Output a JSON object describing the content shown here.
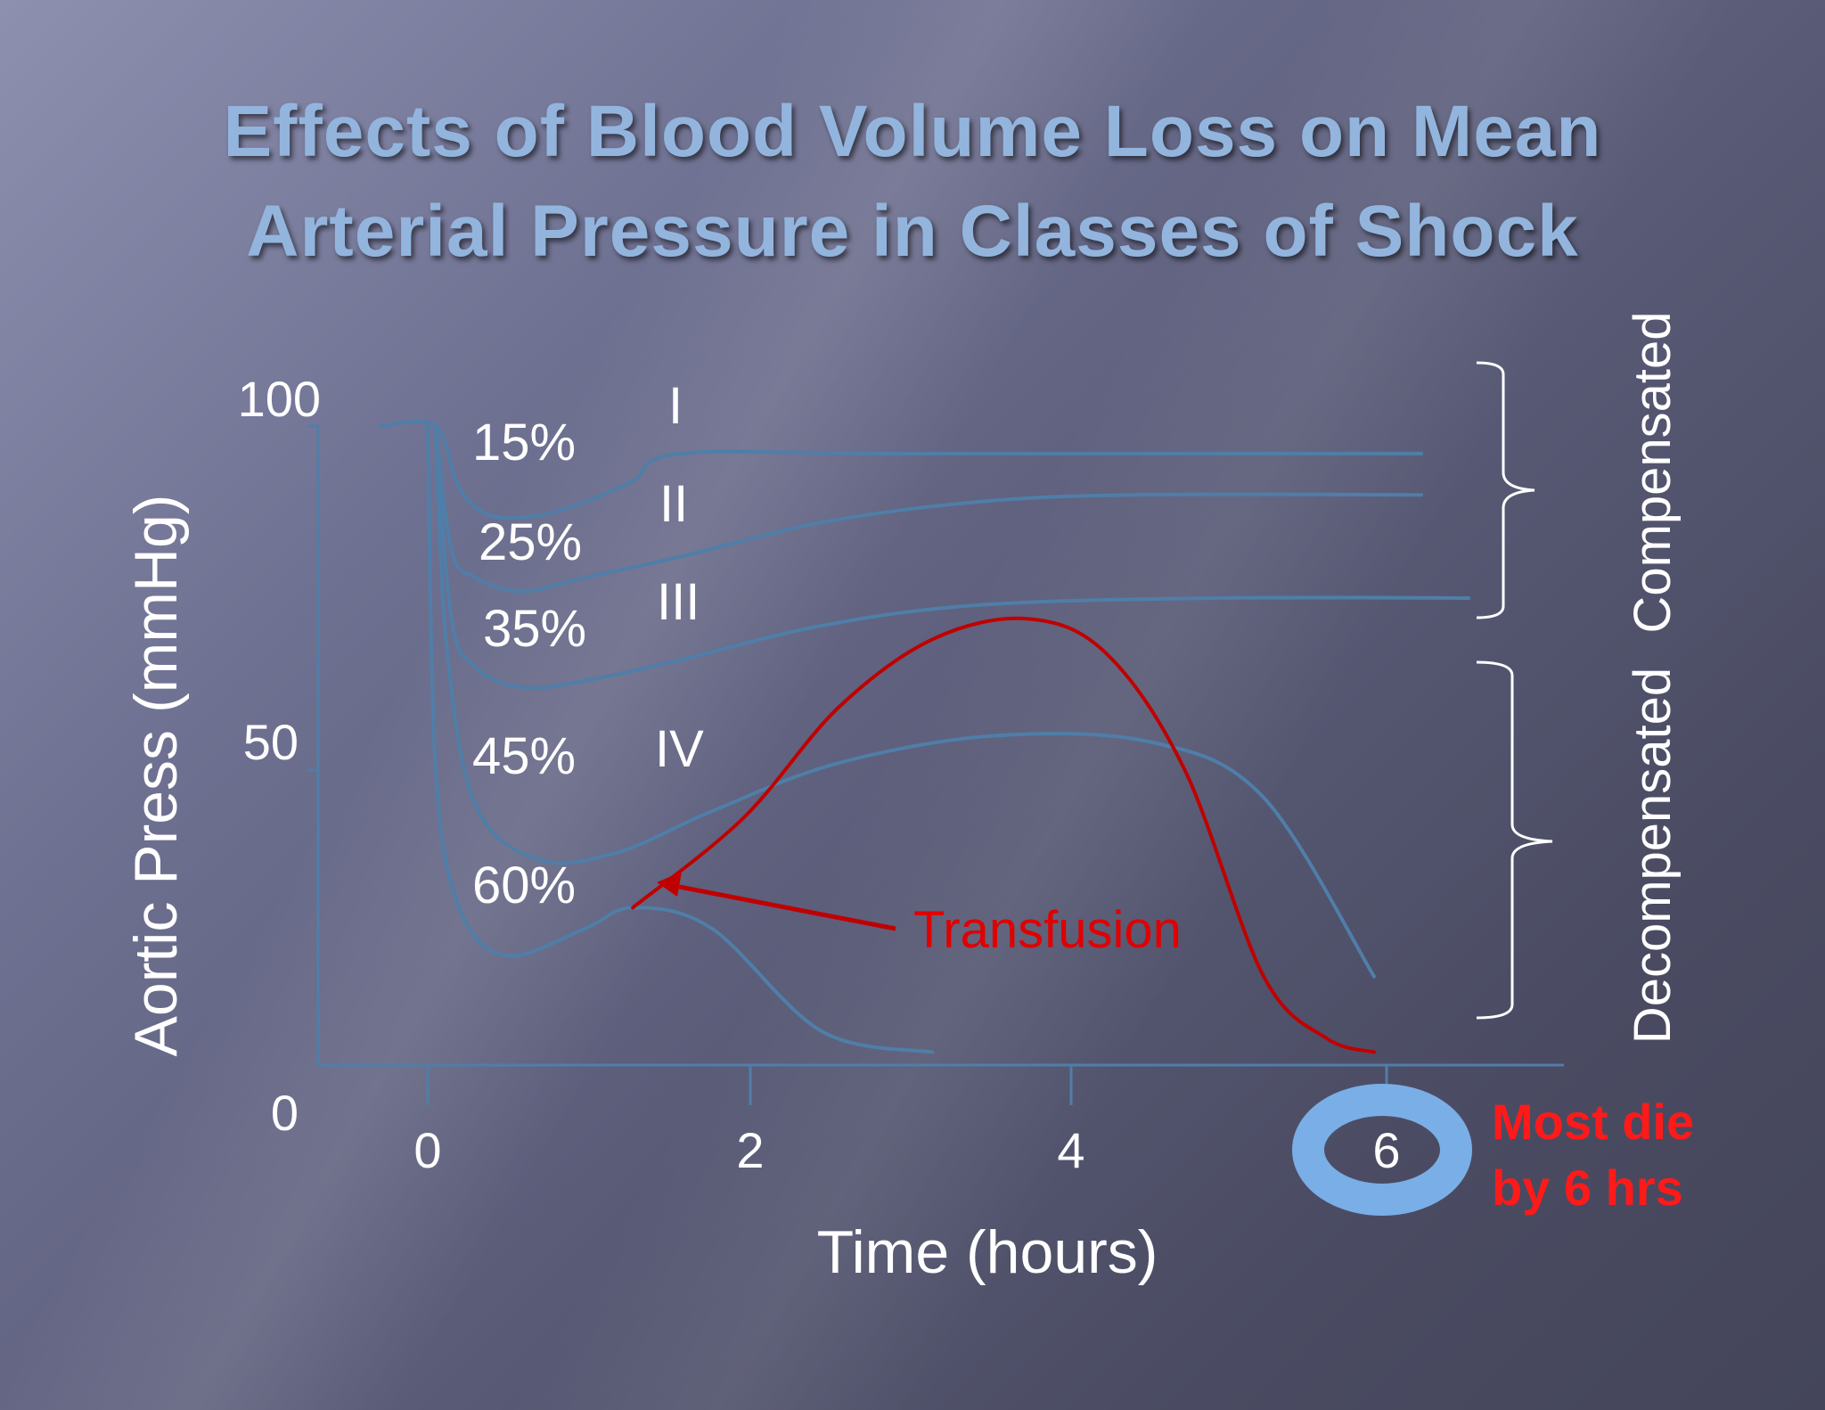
{
  "slide": {
    "title_line1": "Effects of Blood Volume Loss on Mean",
    "title_line2": "Arterial Pressure in Classes of Shock"
  },
  "chart_data": {
    "type": "line",
    "xlabel": "Time (hours)",
    "ylabel": "Aortic Press (mmHg)",
    "xlim": [
      0,
      7
    ],
    "ylim": [
      0,
      100
    ],
    "x_ticks": [
      "0",
      "2",
      "4",
      "6"
    ],
    "y_ticks": [
      "0",
      "50",
      "100"
    ],
    "series": [
      {
        "name": "15%",
        "class": "I",
        "color": "#4f7ea8",
        "x": [
          -0.3,
          0.05,
          0.2,
          0.4,
          0.7,
          1.0,
          1.3,
          1.6,
          3.0,
          6.3
        ],
        "y": [
          100,
          100,
          91,
          87,
          87,
          89,
          92,
          96,
          96,
          96
        ]
      },
      {
        "name": "25%",
        "class": "II",
        "color": "#4f7ea8",
        "x": [
          0.05,
          0.15,
          0.3,
          0.6,
          1.0,
          1.6,
          2.5,
          3.5,
          4.5,
          6.3
        ],
        "y": [
          100,
          82,
          78,
          76,
          78,
          81,
          86,
          89,
          90,
          90
        ]
      },
      {
        "name": "35%",
        "class": "III",
        "color": "#4f7ea8",
        "x": [
          0.05,
          0.15,
          0.3,
          0.6,
          1.0,
          1.6,
          2.5,
          3.5,
          5.0,
          6.6
        ],
        "y": [
          100,
          72,
          65,
          62,
          63,
          66,
          71,
          74,
          75,
          75
        ]
      },
      {
        "name": "45%",
        "class": "IV",
        "color": "#4f7ea8",
        "x": [
          0.05,
          0.12,
          0.3,
          0.7,
          1.2,
          1.8,
          2.6,
          3.6,
          4.6,
          5.3,
          6.0
        ],
        "y": [
          100,
          68,
          45,
          37,
          38,
          44,
          51,
          55,
          54,
          46,
          20
        ]
      },
      {
        "name": "60%",
        "class": "",
        "color": "#4f7ea8",
        "x": [
          0.0,
          0.05,
          0.2,
          0.5,
          1.0,
          1.3,
          1.8,
          2.5,
          3.2
        ],
        "y": [
          100,
          50,
          30,
          23,
          27,
          30,
          27,
          12,
          9
        ]
      },
      {
        "name": "Transfusion",
        "class": "",
        "color": "#c00000",
        "x": [
          1.3,
          2.0,
          2.6,
          3.2,
          3.8,
          4.3,
          4.8,
          5.3,
          5.7,
          6.0
        ],
        "y": [
          30,
          43,
          59,
          69,
          72,
          67,
          50,
          20,
          11,
          9
        ]
      }
    ],
    "annotations": [
      "Transfusion",
      "Most die by 6 hrs"
    ],
    "brackets": [
      "Compensated",
      "Decompensated"
    ],
    "highlight_tick": "6",
    "grid": false,
    "legend": "inline"
  },
  "annotations": {
    "transfusion_label": "Transfusion",
    "most_die_line1": "Most die",
    "most_die_line2": "by 6 hrs",
    "compensated_label": "Compensated",
    "decompensated_label": "Decompensated"
  },
  "colors": {
    "curve": "#4f7ea8",
    "transfusion": "#c00000",
    "highlight_ring": "#7aaee6",
    "title": "#93b5dd"
  }
}
